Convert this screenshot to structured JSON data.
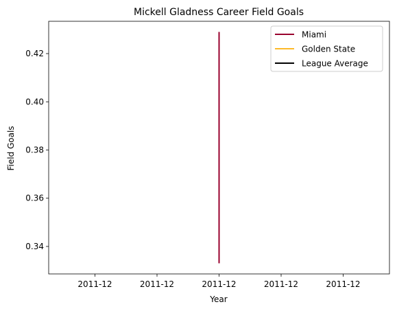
{
  "chart_data": {
    "type": "line",
    "title": "Mickell Gladness Career Field Goals",
    "xlabel": "Year",
    "ylabel": "Field Goals",
    "x_tick_labels": [
      "2011-12",
      "2011-12",
      "2011-12",
      "2011-12",
      "2011-12"
    ],
    "y_ticks": [
      0.34,
      0.36,
      0.38,
      0.4,
      0.42
    ],
    "y_tick_labels": [
      "0.34",
      "0.36",
      "0.38",
      "0.40",
      "0.42"
    ],
    "ylim": [
      0.3286,
      0.4334
    ],
    "grid": false,
    "legend_position": "top-right",
    "series": [
      {
        "name": "Miami",
        "color": "#98002e",
        "x": [
          "2011-12",
          "2011-12"
        ],
        "values": [
          0.333,
          0.429
        ]
      },
      {
        "name": "Golden State",
        "color": "#fdb927",
        "x": [],
        "values": []
      },
      {
        "name": "League Average",
        "color": "#000000",
        "x": [],
        "values": []
      }
    ]
  }
}
